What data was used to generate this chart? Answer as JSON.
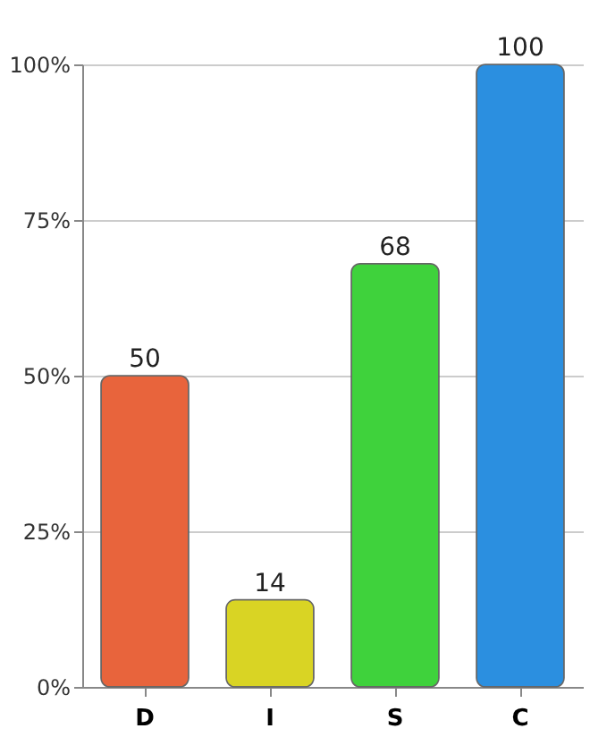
{
  "chart_data": {
    "type": "bar",
    "categories": [
      "D",
      "I",
      "S",
      "C"
    ],
    "values": [
      50,
      14,
      68,
      100
    ],
    "colors": [
      "#e8643c",
      "#d9d424",
      "#3fd23c",
      "#2b8fe0"
    ],
    "ylim": [
      0,
      100
    ],
    "yticks": [
      {
        "value": 0,
        "label": "0%"
      },
      {
        "value": 25,
        "label": "25%"
      },
      {
        "value": 50,
        "label": "50%"
      },
      {
        "value": 75,
        "label": "75%"
      },
      {
        "value": 100,
        "label": "100%"
      }
    ],
    "grid": "y",
    "data_labels": true
  }
}
